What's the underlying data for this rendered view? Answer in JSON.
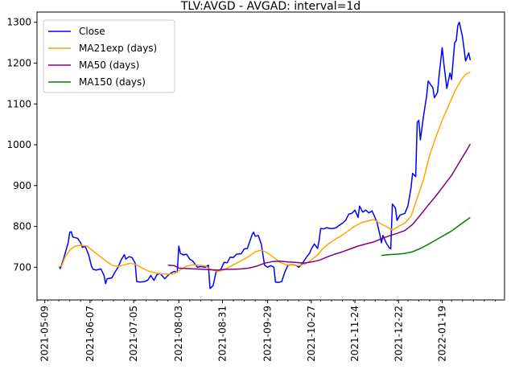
{
  "chart_data": {
    "type": "line",
    "title": "TLV:AVGD - AVGAD: interval=1d",
    "xlabel": "",
    "ylabel": "",
    "xlim": [
      "2021-05-04",
      "2022-02-28"
    ],
    "ylim": [
      620,
      1325
    ],
    "x_ticks": [
      "2021-05-09",
      "2021-06-07",
      "2021-07-05",
      "2021-08-03",
      "2021-08-31",
      "2021-09-29",
      "2021-10-27",
      "2021-11-24",
      "2021-12-22",
      "2022-01-19"
    ],
    "y_ticks": [
      700,
      800,
      900,
      1000,
      1100,
      1200,
      1300
    ],
    "legend_position": "top-left",
    "grid": false,
    "series": [
      {
        "name": "Close",
        "color": "#0000ff",
        "points": [
          [
            "2021-05-18",
            702
          ],
          [
            "2021-05-19",
            697
          ],
          [
            "2021-05-21",
            720
          ],
          [
            "2021-05-24",
            760
          ],
          [
            "2021-05-25",
            786
          ],
          [
            "2021-05-26",
            787
          ],
          [
            "2021-05-27",
            774
          ],
          [
            "2021-05-30",
            771
          ],
          [
            "2021-06-01",
            760
          ],
          [
            "2021-06-02",
            749
          ],
          [
            "2021-06-04",
            751
          ],
          [
            "2021-06-06",
            732
          ],
          [
            "2021-06-08",
            702
          ],
          [
            "2021-06-09",
            695
          ],
          [
            "2021-06-11",
            693
          ],
          [
            "2021-06-14",
            696
          ],
          [
            "2021-06-16",
            680
          ],
          [
            "2021-06-17",
            660
          ],
          [
            "2021-06-18",
            672
          ],
          [
            "2021-06-21",
            674
          ],
          [
            "2021-06-23",
            688
          ],
          [
            "2021-06-25",
            700
          ],
          [
            "2021-06-27",
            718
          ],
          [
            "2021-06-29",
            731
          ],
          [
            "2021-06-30",
            720
          ],
          [
            "2021-07-02",
            726
          ],
          [
            "2021-07-04",
            724
          ],
          [
            "2021-07-06",
            710
          ],
          [
            "2021-07-07",
            665
          ],
          [
            "2021-07-09",
            664
          ],
          [
            "2021-07-12",
            665
          ],
          [
            "2021-07-14",
            668
          ],
          [
            "2021-07-16",
            680
          ],
          [
            "2021-07-18",
            668
          ],
          [
            "2021-07-20",
            682
          ],
          [
            "2021-07-22",
            685
          ],
          [
            "2021-07-25",
            672
          ],
          [
            "2021-07-27",
            680
          ],
          [
            "2021-07-29",
            686
          ],
          [
            "2021-07-31",
            690
          ],
          [
            "2021-08-02",
            688
          ],
          [
            "2021-08-03",
            752
          ],
          [
            "2021-08-04",
            734
          ],
          [
            "2021-08-06",
            730
          ],
          [
            "2021-08-08",
            732
          ],
          [
            "2021-08-10",
            720
          ],
          [
            "2021-08-12",
            715
          ],
          [
            "2021-08-15",
            700
          ],
          [
            "2021-08-17",
            702
          ],
          [
            "2021-08-20",
            700
          ],
          [
            "2021-08-22",
            705
          ],
          [
            "2021-08-23",
            648
          ],
          [
            "2021-08-25",
            655
          ],
          [
            "2021-08-27",
            690
          ],
          [
            "2021-08-30",
            695
          ],
          [
            "2021-09-01",
            712
          ],
          [
            "2021-09-03",
            711
          ],
          [
            "2021-09-05",
            725
          ],
          [
            "2021-09-07",
            724
          ],
          [
            "2021-09-09",
            732
          ],
          [
            "2021-09-12",
            733
          ],
          [
            "2021-09-14",
            745
          ],
          [
            "2021-09-16",
            746
          ],
          [
            "2021-09-19",
            780
          ],
          [
            "2021-09-20",
            786
          ],
          [
            "2021-09-21",
            776
          ],
          [
            "2021-09-23",
            778
          ],
          [
            "2021-09-25",
            755
          ],
          [
            "2021-09-26",
            730
          ],
          [
            "2021-09-27",
            705
          ],
          [
            "2021-09-29",
            700
          ],
          [
            "2021-10-01",
            704
          ],
          [
            "2021-10-03",
            700
          ],
          [
            "2021-10-04",
            664
          ],
          [
            "2021-10-06",
            663
          ],
          [
            "2021-10-08",
            665
          ],
          [
            "2021-10-10",
            688
          ],
          [
            "2021-10-12",
            705
          ],
          [
            "2021-10-14",
            706
          ],
          [
            "2021-10-17",
            705
          ],
          [
            "2021-10-19",
            700
          ],
          [
            "2021-10-21",
            708
          ],
          [
            "2021-10-24",
            725
          ],
          [
            "2021-10-26",
            735
          ],
          [
            "2021-10-27",
            745
          ],
          [
            "2021-10-29",
            757
          ],
          [
            "2021-10-31",
            746
          ],
          [
            "2021-11-01",
            765
          ],
          [
            "2021-11-02",
            795
          ],
          [
            "2021-11-04",
            794
          ],
          [
            "2021-11-06",
            797
          ],
          [
            "2021-11-08",
            795
          ],
          [
            "2021-11-10",
            795
          ],
          [
            "2021-11-12",
            797
          ],
          [
            "2021-11-14",
            803
          ],
          [
            "2021-11-16",
            808
          ],
          [
            "2021-11-18",
            815
          ],
          [
            "2021-11-20",
            830
          ],
          [
            "2021-11-22",
            832
          ],
          [
            "2021-11-24",
            840
          ],
          [
            "2021-11-26",
            822
          ],
          [
            "2021-11-27",
            850
          ],
          [
            "2021-11-29",
            835
          ],
          [
            "2021-12-01",
            840
          ],
          [
            "2021-12-03",
            833
          ],
          [
            "2021-12-05",
            838
          ],
          [
            "2021-12-08",
            812
          ],
          [
            "2021-12-10",
            780
          ],
          [
            "2021-12-11",
            760
          ],
          [
            "2021-12-12",
            778
          ],
          [
            "2021-12-14",
            760
          ],
          [
            "2021-12-16",
            748
          ],
          [
            "2021-12-17",
            745
          ],
          [
            "2021-12-18",
            855
          ],
          [
            "2021-12-20",
            845
          ],
          [
            "2021-12-21",
            815
          ],
          [
            "2021-12-23",
            828
          ],
          [
            "2021-12-26",
            832
          ],
          [
            "2021-12-28",
            850
          ],
          [
            "2021-12-30",
            895
          ],
          [
            "2021-12-31",
            930
          ],
          [
            "2022-01-02",
            922
          ],
          [
            "2022-01-03",
            1055
          ],
          [
            "2022-01-04",
            1060
          ],
          [
            "2022-01-05",
            1012
          ],
          [
            "2022-01-07",
            1070
          ],
          [
            "2022-01-09",
            1120
          ],
          [
            "2022-01-10",
            1156
          ],
          [
            "2022-01-12",
            1145
          ],
          [
            "2022-01-13",
            1140
          ],
          [
            "2022-01-14",
            1115
          ],
          [
            "2022-01-16",
            1128
          ],
          [
            "2022-01-17",
            1170
          ],
          [
            "2022-01-19",
            1238
          ],
          [
            "2022-01-20",
            1200
          ],
          [
            "2022-01-22",
            1138
          ],
          [
            "2022-01-24",
            1176
          ],
          [
            "2022-01-25",
            1160
          ],
          [
            "2022-01-27",
            1250
          ],
          [
            "2022-01-28",
            1255
          ],
          [
            "2022-01-29",
            1292
          ],
          [
            "2022-01-30",
            1300
          ],
          [
            "2022-02-01",
            1265
          ],
          [
            "2022-02-03",
            1205
          ],
          [
            "2022-02-05",
            1225
          ],
          [
            "2022-02-06",
            1207
          ]
        ]
      },
      {
        "name": "MA21exp (days)",
        "color": "#ffa500",
        "points": [
          [
            "2021-05-18",
            700
          ],
          [
            "2021-05-20",
            705
          ],
          [
            "2021-05-22",
            725
          ],
          [
            "2021-05-25",
            742
          ],
          [
            "2021-05-28",
            751
          ],
          [
            "2021-06-01",
            754
          ],
          [
            "2021-06-05",
            752
          ],
          [
            "2021-06-09",
            740
          ],
          [
            "2021-06-13",
            728
          ],
          [
            "2021-06-17",
            716
          ],
          [
            "2021-06-21",
            705
          ],
          [
            "2021-06-25",
            702
          ],
          [
            "2021-06-29",
            706
          ],
          [
            "2021-07-03",
            710
          ],
          [
            "2021-07-07",
            706
          ],
          [
            "2021-07-11",
            697
          ],
          [
            "2021-07-15",
            690
          ],
          [
            "2021-07-19",
            686
          ],
          [
            "2021-07-23",
            684
          ],
          [
            "2021-07-27",
            683
          ],
          [
            "2021-07-31",
            684
          ],
          [
            "2021-08-04",
            694
          ],
          [
            "2021-08-08",
            703
          ],
          [
            "2021-08-12",
            706
          ],
          [
            "2021-08-16",
            705
          ],
          [
            "2021-08-20",
            703
          ],
          [
            "2021-08-24",
            694
          ],
          [
            "2021-08-28",
            690
          ],
          [
            "2021-09-01",
            694
          ],
          [
            "2021-09-05",
            702
          ],
          [
            "2021-09-09",
            710
          ],
          [
            "2021-09-13",
            718
          ],
          [
            "2021-09-17",
            727
          ],
          [
            "2021-09-21",
            738
          ],
          [
            "2021-09-25",
            742
          ],
          [
            "2021-09-29",
            735
          ],
          [
            "2021-10-03",
            724
          ],
          [
            "2021-10-07",
            712
          ],
          [
            "2021-10-11",
            706
          ],
          [
            "2021-10-15",
            705
          ],
          [
            "2021-10-19",
            704
          ],
          [
            "2021-10-23",
            708
          ],
          [
            "2021-10-27",
            718
          ],
          [
            "2021-10-31",
            730
          ],
          [
            "2021-11-04",
            748
          ],
          [
            "2021-11-08",
            760
          ],
          [
            "2021-11-12",
            770
          ],
          [
            "2021-11-16",
            779
          ],
          [
            "2021-11-20",
            790
          ],
          [
            "2021-11-24",
            801
          ],
          [
            "2021-11-28",
            809
          ],
          [
            "2021-12-02",
            813
          ],
          [
            "2021-12-06",
            817
          ],
          [
            "2021-12-10",
            808
          ],
          [
            "2021-12-14",
            800
          ],
          [
            "2021-12-18",
            791
          ],
          [
            "2021-12-22",
            800
          ],
          [
            "2021-12-26",
            808
          ],
          [
            "2021-12-30",
            825
          ],
          [
            "2022-01-03",
            870
          ],
          [
            "2022-01-07",
            915
          ],
          [
            "2022-01-11",
            975
          ],
          [
            "2022-01-15",
            1020
          ],
          [
            "2022-01-19",
            1060
          ],
          [
            "2022-01-23",
            1095
          ],
          [
            "2022-01-27",
            1130
          ],
          [
            "2022-01-31",
            1158
          ],
          [
            "2022-02-03",
            1172
          ],
          [
            "2022-02-06",
            1178
          ]
        ]
      },
      {
        "name": "MA50 (days)",
        "color": "#800080",
        "points": [
          [
            "2021-07-27",
            705
          ],
          [
            "2021-07-31",
            704
          ],
          [
            "2021-08-03",
            698
          ],
          [
            "2021-08-08",
            697
          ],
          [
            "2021-08-13",
            696
          ],
          [
            "2021-08-18",
            695
          ],
          [
            "2021-08-23",
            694
          ],
          [
            "2021-08-28",
            693
          ],
          [
            "2021-09-02",
            695
          ],
          [
            "2021-09-07",
            695
          ],
          [
            "2021-09-12",
            696
          ],
          [
            "2021-09-17",
            698
          ],
          [
            "2021-09-22",
            703
          ],
          [
            "2021-09-27",
            710
          ],
          [
            "2021-10-02",
            714
          ],
          [
            "2021-10-07",
            715
          ],
          [
            "2021-10-12",
            713
          ],
          [
            "2021-10-17",
            712
          ],
          [
            "2021-10-22",
            710
          ],
          [
            "2021-10-27",
            713
          ],
          [
            "2021-11-01",
            717
          ],
          [
            "2021-11-06",
            725
          ],
          [
            "2021-11-11",
            732
          ],
          [
            "2021-11-16",
            738
          ],
          [
            "2021-11-21",
            745
          ],
          [
            "2021-11-26",
            752
          ],
          [
            "2021-12-01",
            757
          ],
          [
            "2021-12-06",
            762
          ],
          [
            "2021-12-11",
            770
          ],
          [
            "2021-12-16",
            777
          ],
          [
            "2021-12-21",
            783
          ],
          [
            "2021-12-26",
            790
          ],
          [
            "2021-12-31",
            805
          ],
          [
            "2022-01-05",
            828
          ],
          [
            "2022-01-10",
            852
          ],
          [
            "2022-01-15",
            875
          ],
          [
            "2022-01-20",
            900
          ],
          [
            "2022-01-25",
            925
          ],
          [
            "2022-01-30",
            957
          ],
          [
            "2022-02-03",
            982
          ],
          [
            "2022-02-06",
            1002
          ]
        ]
      },
      {
        "name": "MA150 (days)",
        "color": "#008000",
        "points": [
          [
            "2021-12-11",
            729
          ],
          [
            "2021-12-16",
            731
          ],
          [
            "2021-12-21",
            732
          ],
          [
            "2021-12-26",
            734
          ],
          [
            "2021-12-31",
            738
          ],
          [
            "2022-01-05",
            746
          ],
          [
            "2022-01-10",
            756
          ],
          [
            "2022-01-15",
            767
          ],
          [
            "2022-01-20",
            778
          ],
          [
            "2022-01-25",
            789
          ],
          [
            "2022-01-30",
            803
          ],
          [
            "2022-02-03",
            814
          ],
          [
            "2022-02-06",
            822
          ]
        ]
      }
    ]
  }
}
